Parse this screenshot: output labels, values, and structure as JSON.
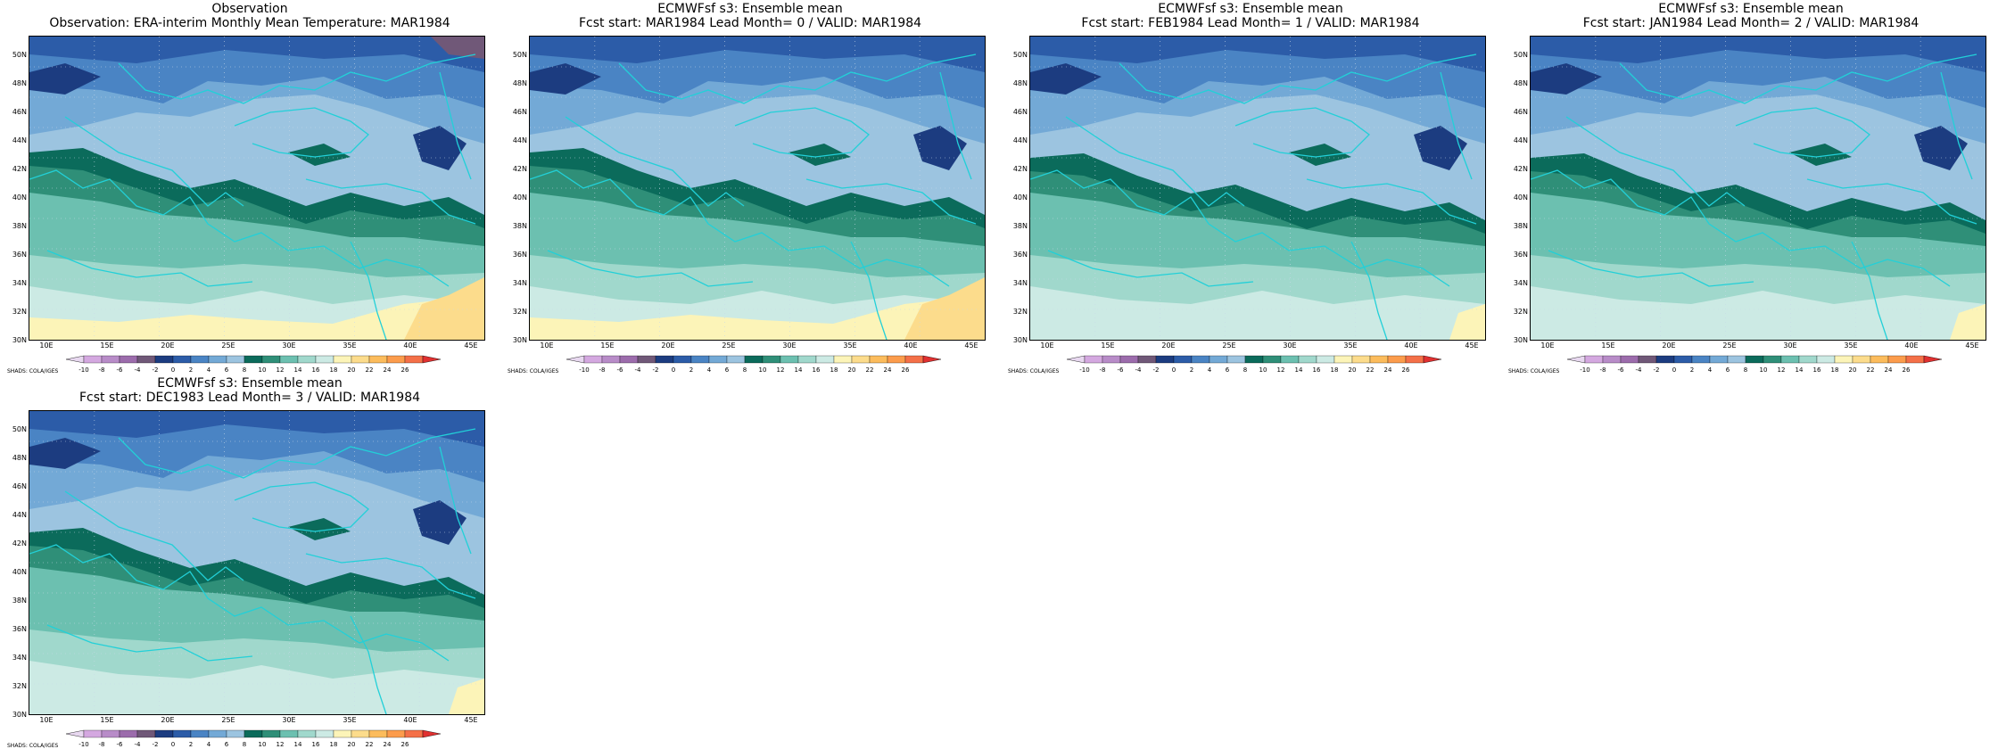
{
  "panels": [
    {
      "id": "obs",
      "title1": "Observation",
      "title2": "Observation: ERA-interim Monthly Mean Temperature: MAR1984",
      "variant": 0
    },
    {
      "id": "lead0",
      "title1": "ECMWFsf s3: Ensemble mean",
      "title2": "Fcst start: MAR1984   Lead Month= 0 / VALID: MAR1984",
      "variant": 1
    },
    {
      "id": "lead1",
      "title1": "ECMWFsf s3: Ensemble mean",
      "title2": "Fcst start: FEB1984   Lead Month= 1 / VALID: MAR1984",
      "variant": 2
    },
    {
      "id": "lead2",
      "title1": "ECMWFsf s3: Ensemble mean",
      "title2": "Fcst start: JAN1984   Lead Month= 2 / VALID: MAR1984",
      "variant": 3
    },
    {
      "id": "lead3",
      "title1": "ECMWFsf s3: Ensemble mean",
      "title2": "Fcst start: DEC1983   Lead Month= 3 / VALID: MAR1984",
      "variant": 4
    }
  ],
  "lat_labels": [
    "50N",
    "48N",
    "46N",
    "44N",
    "42N",
    "40N",
    "38N",
    "36N",
    "34N",
    "32N",
    "30N"
  ],
  "lon_labels": [
    "10E",
    "15E",
    "20E",
    "25E",
    "30E",
    "35E",
    "40E",
    "45E"
  ],
  "shads_label": "SHADS: COLA/IGES",
  "colorbar": {
    "labels": [
      "-10",
      "-8",
      "-6",
      "-4",
      "-2",
      "0",
      "2",
      "4",
      "6",
      "8",
      "10",
      "12",
      "14",
      "16",
      "18",
      "20",
      "22",
      "24",
      "26"
    ],
    "colors": [
      "#e8d8f0",
      "#d4a8e0",
      "#b88cc8",
      "#9c6cac",
      "#705878",
      "#1c3c80",
      "#2c5ca8",
      "#4a84c4",
      "#73a9d6",
      "#9cc4e0",
      "#0b6b5b",
      "#2f8f78",
      "#6cc0b0",
      "#a0d8cc",
      "#cceae4",
      "#fcf4b8",
      "#fcdc8c",
      "#fcbc5c",
      "#fc9c4c",
      "#f47048",
      "#e03030"
    ]
  }
}
